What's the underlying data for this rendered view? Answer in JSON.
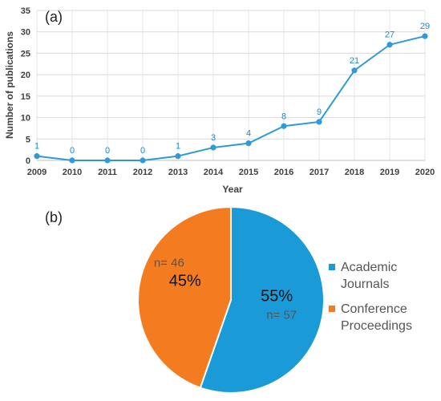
{
  "chart_data": [
    {
      "type": "line",
      "panel_label": "(a)",
      "title": "",
      "xlabel": "Year",
      "ylabel": "Number of publications",
      "categories": [
        "2009",
        "2010",
        "2011",
        "2012",
        "2013",
        "2014",
        "2015",
        "2016",
        "2017",
        "2018",
        "2019",
        "2020"
      ],
      "values": [
        1,
        0,
        0,
        0,
        1,
        3,
        4,
        8,
        9,
        21,
        27,
        29
      ],
      "data_labels": [
        "1",
        "0",
        "0",
        "0",
        "1",
        "3",
        "4",
        "8",
        "9",
        "21",
        "27",
        "29"
      ],
      "ylim": [
        0,
        35
      ],
      "yticks": [
        "0",
        "5",
        "10",
        "15",
        "20",
        "25",
        "30",
        "35"
      ],
      "grid": true,
      "color": "#2e9bd6"
    },
    {
      "type": "pie",
      "panel_label": "(b)",
      "title": "",
      "slices": [
        {
          "name": "Academic Journals",
          "legend_lines": [
            "Academic",
            "Journals"
          ],
          "value": 57,
          "count_label": "n= 57",
          "percent_label": "55%",
          "color": "#1a9ad6"
        },
        {
          "name": "Conference Proceedings",
          "legend_lines": [
            "Conference",
            "Proceedings"
          ],
          "value": 46,
          "count_label": "n= 46",
          "percent_label": "45%",
          "color": "#f47c20"
        }
      ],
      "legend_position": "right"
    }
  ]
}
